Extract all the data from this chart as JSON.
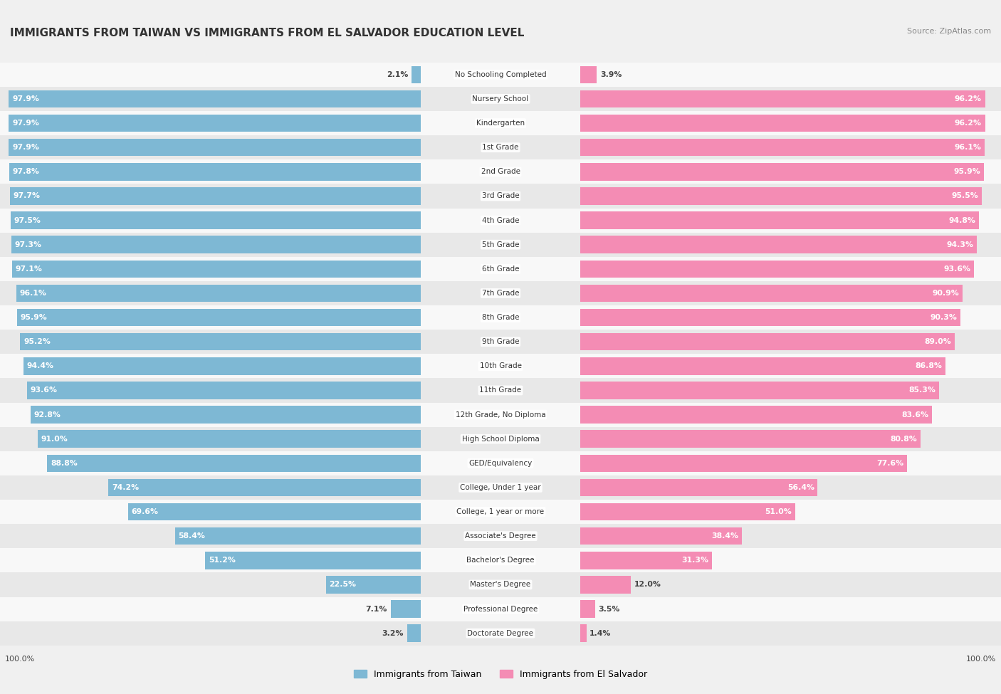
{
  "title": "IMMIGRANTS FROM TAIWAN VS IMMIGRANTS FROM EL SALVADOR EDUCATION LEVEL",
  "source": "Source: ZipAtlas.com",
  "categories": [
    "No Schooling Completed",
    "Nursery School",
    "Kindergarten",
    "1st Grade",
    "2nd Grade",
    "3rd Grade",
    "4th Grade",
    "5th Grade",
    "6th Grade",
    "7th Grade",
    "8th Grade",
    "9th Grade",
    "10th Grade",
    "11th Grade",
    "12th Grade, No Diploma",
    "High School Diploma",
    "GED/Equivalency",
    "College, Under 1 year",
    "College, 1 year or more",
    "Associate's Degree",
    "Bachelor's Degree",
    "Master's Degree",
    "Professional Degree",
    "Doctorate Degree"
  ],
  "taiwan": [
    2.1,
    97.9,
    97.9,
    97.9,
    97.8,
    97.7,
    97.5,
    97.3,
    97.1,
    96.1,
    95.9,
    95.2,
    94.4,
    93.6,
    92.8,
    91.0,
    88.8,
    74.2,
    69.6,
    58.4,
    51.2,
    22.5,
    7.1,
    3.2
  ],
  "elsalvador": [
    3.9,
    96.2,
    96.2,
    96.1,
    95.9,
    95.5,
    94.8,
    94.3,
    93.6,
    90.9,
    90.3,
    89.0,
    86.8,
    85.3,
    83.6,
    80.8,
    77.6,
    56.4,
    51.0,
    38.4,
    31.3,
    12.0,
    3.5,
    1.4
  ],
  "taiwan_color": "#7eb8d4",
  "elsalvador_color": "#f48cb4",
  "background_color": "#f0f0f0",
  "row_bg_light": "#f8f8f8",
  "row_bg_dark": "#e8e8e8",
  "legend_taiwan": "Immigrants from Taiwan",
  "legend_elsalvador": "Immigrants from El Salvador",
  "bar_height": 0.72,
  "xlim": 100.0
}
